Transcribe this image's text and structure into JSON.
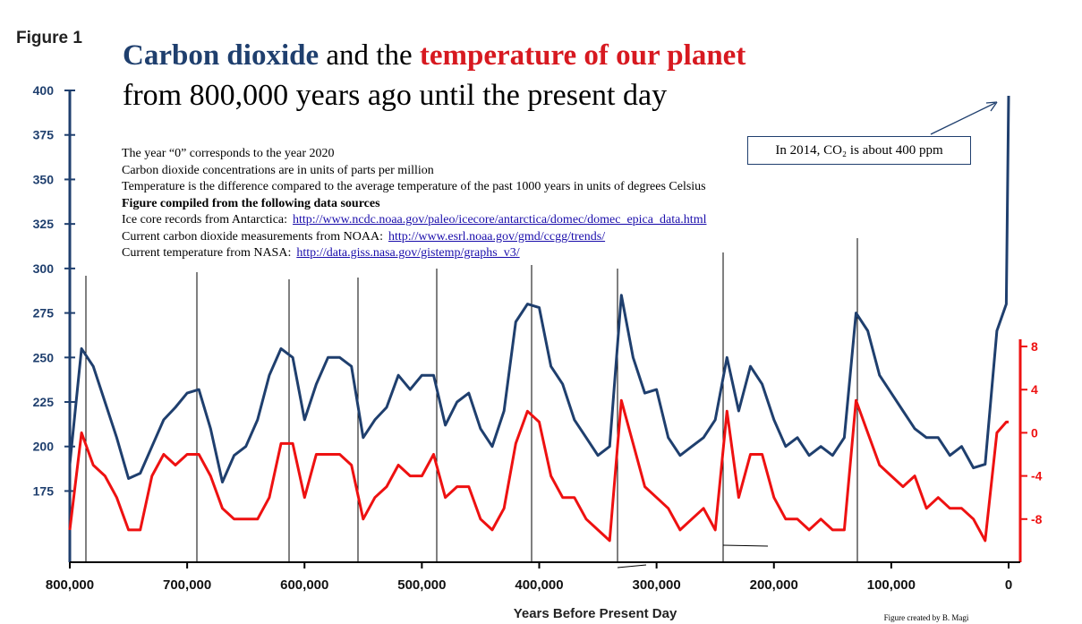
{
  "figure_label": "Figure 1",
  "chart_data": {
    "type": "line",
    "title": {
      "co2": "Carbon dioxide",
      "mid": "and the",
      "temp": "temperature of our planet",
      "line2": "from 800,000 years ago until the present day"
    },
    "notes": [
      "The year “0” corresponds to the year 2020",
      "Carbon dioxide concentrations are in units of parts per million",
      "Temperature is the difference compared to the average temperature of the past 1000 years in units of degrees Celsius"
    ],
    "sources_heading": "Figure compiled from the following data sources",
    "sources": [
      {
        "label": "Ice core records from Antarctica:",
        "url": "http://www.ncdc.noaa.gov/paleo/icecore/antarctica/domec/domec_epica_data.html"
      },
      {
        "label": "Current carbon dioxide measurements from NOAA:",
        "url": "http://www.esrl.noaa.gov/gmd/ccgg/trends/"
      },
      {
        "label": "Current temperature from NASA:",
        "url": "http://data.giss.nasa.gov/gistemp/graphs_v3/"
      }
    ],
    "annotation": "In 2014, CO₂ is about 400 ppm",
    "xlabel": "Years Before Present Day",
    "credit": "Figure created by B. Magi",
    "xlim": [
      800000,
      0
    ],
    "xticks": [
      {
        "value": 800000,
        "label": "800,000"
      },
      {
        "value": 700000,
        "label": "700,000"
      },
      {
        "value": 600000,
        "label": "600,000"
      },
      {
        "value": 500000,
        "label": "500,000"
      },
      {
        "value": 400000,
        "label": "400,000"
      },
      {
        "value": 300000,
        "label": "300,000"
      },
      {
        "value": 200000,
        "label": "200,000"
      },
      {
        "value": 100000,
        "label": "100,000"
      },
      0
    ],
    "ylim": [
      135,
      400
    ],
    "yticks": [
      175,
      200,
      225,
      250,
      275,
      300,
      325,
      350,
      375,
      400
    ],
    "y2lim": [
      -12,
      8
    ],
    "y2ticks": [
      -8,
      -4,
      0,
      4,
      8
    ],
    "x": [
      800000,
      790000,
      780000,
      770000,
      760000,
      750000,
      740000,
      730000,
      720000,
      710000,
      700000,
      690000,
      680000,
      670000,
      660000,
      650000,
      640000,
      630000,
      620000,
      610000,
      600000,
      590000,
      580000,
      570000,
      560000,
      550000,
      540000,
      530000,
      520000,
      510000,
      500000,
      490000,
      480000,
      470000,
      460000,
      450000,
      440000,
      430000,
      420000,
      410000,
      400000,
      390000,
      380000,
      370000,
      360000,
      350000,
      340000,
      330000,
      320000,
      310000,
      300000,
      290000,
      280000,
      270000,
      260000,
      250000,
      240000,
      230000,
      220000,
      210000,
      200000,
      190000,
      180000,
      170000,
      160000,
      150000,
      140000,
      130000,
      120000,
      110000,
      100000,
      90000,
      80000,
      70000,
      60000,
      50000,
      40000,
      30000,
      20000,
      10000,
      2000,
      0
    ],
    "series": [
      {
        "name": "Carbon dioxide",
        "color": "#1f3f6e",
        "values": [
          190,
          255,
          245,
          225,
          205,
          182,
          185,
          200,
          215,
          222,
          230,
          232,
          210,
          180,
          195,
          200,
          215,
          240,
          255,
          250,
          215,
          235,
          250,
          250,
          245,
          205,
          215,
          222,
          240,
          232,
          240,
          240,
          212,
          225,
          230,
          210,
          200,
          220,
          270,
          280,
          278,
          245,
          235,
          215,
          205,
          195,
          200,
          285,
          250,
          230,
          232,
          205,
          195,
          200,
          205,
          215,
          250,
          220,
          245,
          235,
          215,
          200,
          205,
          195,
          200,
          195,
          205,
          275,
          265,
          240,
          230,
          220,
          210,
          205,
          205,
          195,
          200,
          188,
          190,
          265,
          280,
          397
        ]
      },
      {
        "name": "Temperature",
        "color": "#ee1111",
        "axis": "y2",
        "values": [
          -9,
          0,
          -3,
          -4,
          -6,
          -9,
          -9,
          -4,
          -2,
          -3,
          -2,
          -2,
          -4,
          -7,
          -8,
          -8,
          -8,
          -6,
          -1,
          -1,
          -6,
          -2,
          -2,
          -2,
          -3,
          -8,
          -6,
          -5,
          -3,
          -4,
          -4,
          -2,
          -6,
          -5,
          -5,
          -8,
          -9,
          -7,
          -1,
          2,
          1,
          -4,
          -6,
          -6,
          -8,
          -9,
          -10,
          3,
          -1,
          -5,
          -6,
          -7,
          -9,
          -8,
          -7,
          -9,
          2,
          -6,
          -2,
          -2,
          -6,
          -8,
          -8,
          -9,
          -8,
          -9,
          -9,
          3,
          0,
          -3,
          -4,
          -5,
          -4,
          -7,
          -6,
          -7,
          -7,
          -8,
          -10,
          0,
          1,
          1
        ]
      }
    ]
  }
}
